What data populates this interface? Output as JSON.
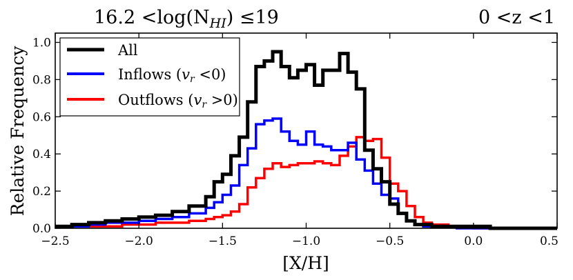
{
  "chart_data": {
    "type": "line",
    "step": true,
    "title_left": "16.2 <log(N",
    "title_left_sub": "HI",
    "title_left_end": ") ≤19",
    "title_right": "0 <z <1",
    "xlabel": "[X/H]",
    "ylabel": "Relative Frequency",
    "xlim": [
      -2.5,
      0.5
    ],
    "ylim": [
      0,
      1.05
    ],
    "xticks": [
      -2.5,
      -2.0,
      -1.5,
      -1.0,
      -0.5,
      0.0,
      0.5
    ],
    "xtick_labels": [
      "−2.5",
      "−2.0",
      "−1.5",
      "−1.0",
      "−0.5",
      "0.0",
      "0.5"
    ],
    "yticks": [
      0.0,
      0.2,
      0.4,
      0.6,
      0.8,
      1.0
    ],
    "ytick_labels": [
      "0.0",
      "0.2",
      "0.4",
      "0.6",
      "0.8",
      "1.0"
    ],
    "legend_location": "top-left",
    "bin_edges": [
      -2.5,
      -2.4,
      -2.3,
      -2.2,
      -2.1,
      -2.0,
      -1.9,
      -1.8,
      -1.7,
      -1.6,
      -1.55,
      -1.5,
      -1.45,
      -1.4,
      -1.35,
      -1.3,
      -1.25,
      -1.2,
      -1.15,
      -1.1,
      -1.05,
      -1.0,
      -0.95,
      -0.9,
      -0.85,
      -0.8,
      -0.75,
      -0.7,
      -0.65,
      -0.6,
      -0.55,
      -0.5,
      -0.45,
      -0.4,
      -0.35,
      -0.3,
      -0.25,
      -0.2,
      -0.15,
      -0.1,
      -0.05,
      0.0,
      0.05,
      0.1,
      0.2,
      0.3,
      0.4,
      0.5
    ],
    "series": [
      {
        "name": "All",
        "legend_label": "All",
        "color": "#000000",
        "values": [
          0.01,
          0.02,
          0.03,
          0.04,
          0.05,
          0.06,
          0.07,
          0.09,
          0.12,
          0.17,
          0.25,
          0.29,
          0.39,
          0.49,
          0.68,
          0.87,
          0.9,
          0.95,
          0.87,
          0.81,
          0.85,
          0.88,
          0.77,
          0.85,
          0.85,
          0.94,
          0.84,
          0.75,
          0.42,
          0.32,
          0.25,
          0.13,
          0.08,
          0.04,
          0.02,
          0.02,
          0.01,
          0.01,
          0.01,
          0.01,
          0.01,
          0.01,
          0.01,
          0.0,
          0.0,
          0.0,
          0.0
        ]
      },
      {
        "name": "Inflows",
        "legend_label": "Inflows (",
        "legend_var": "v",
        "legend_sub": "r",
        "legend_end": " <0)",
        "color": "#0000ff",
        "values": [
          0.01,
          0.01,
          0.02,
          0.03,
          0.03,
          0.04,
          0.05,
          0.06,
          0.08,
          0.11,
          0.14,
          0.18,
          0.23,
          0.34,
          0.43,
          0.56,
          0.58,
          0.59,
          0.52,
          0.47,
          0.45,
          0.52,
          0.45,
          0.44,
          0.42,
          0.42,
          0.46,
          0.37,
          0.31,
          0.24,
          0.18,
          0.16,
          0.08,
          0.04,
          0.02,
          0.01,
          0.01,
          0.01,
          0.01,
          0.0,
          0.0,
          0.0,
          0.0,
          0.0,
          0.0,
          0.0,
          0.0
        ]
      },
      {
        "name": "Outflows",
        "legend_label": "Outflows (",
        "legend_var": "v",
        "legend_sub": "r",
        "legend_end": " >0)",
        "color": "#ff0000",
        "values": [
          0.01,
          0.01,
          0.01,
          0.01,
          0.02,
          0.02,
          0.03,
          0.03,
          0.04,
          0.05,
          0.06,
          0.07,
          0.09,
          0.13,
          0.22,
          0.27,
          0.32,
          0.35,
          0.33,
          0.34,
          0.35,
          0.35,
          0.36,
          0.35,
          0.34,
          0.39,
          0.44,
          0.49,
          0.47,
          0.48,
          0.38,
          0.24,
          0.2,
          0.12,
          0.06,
          0.03,
          0.02,
          0.02,
          0.01,
          0.01,
          0.01,
          0.0,
          0.0,
          0.0,
          0.0,
          0.0,
          0.0
        ]
      }
    ]
  }
}
